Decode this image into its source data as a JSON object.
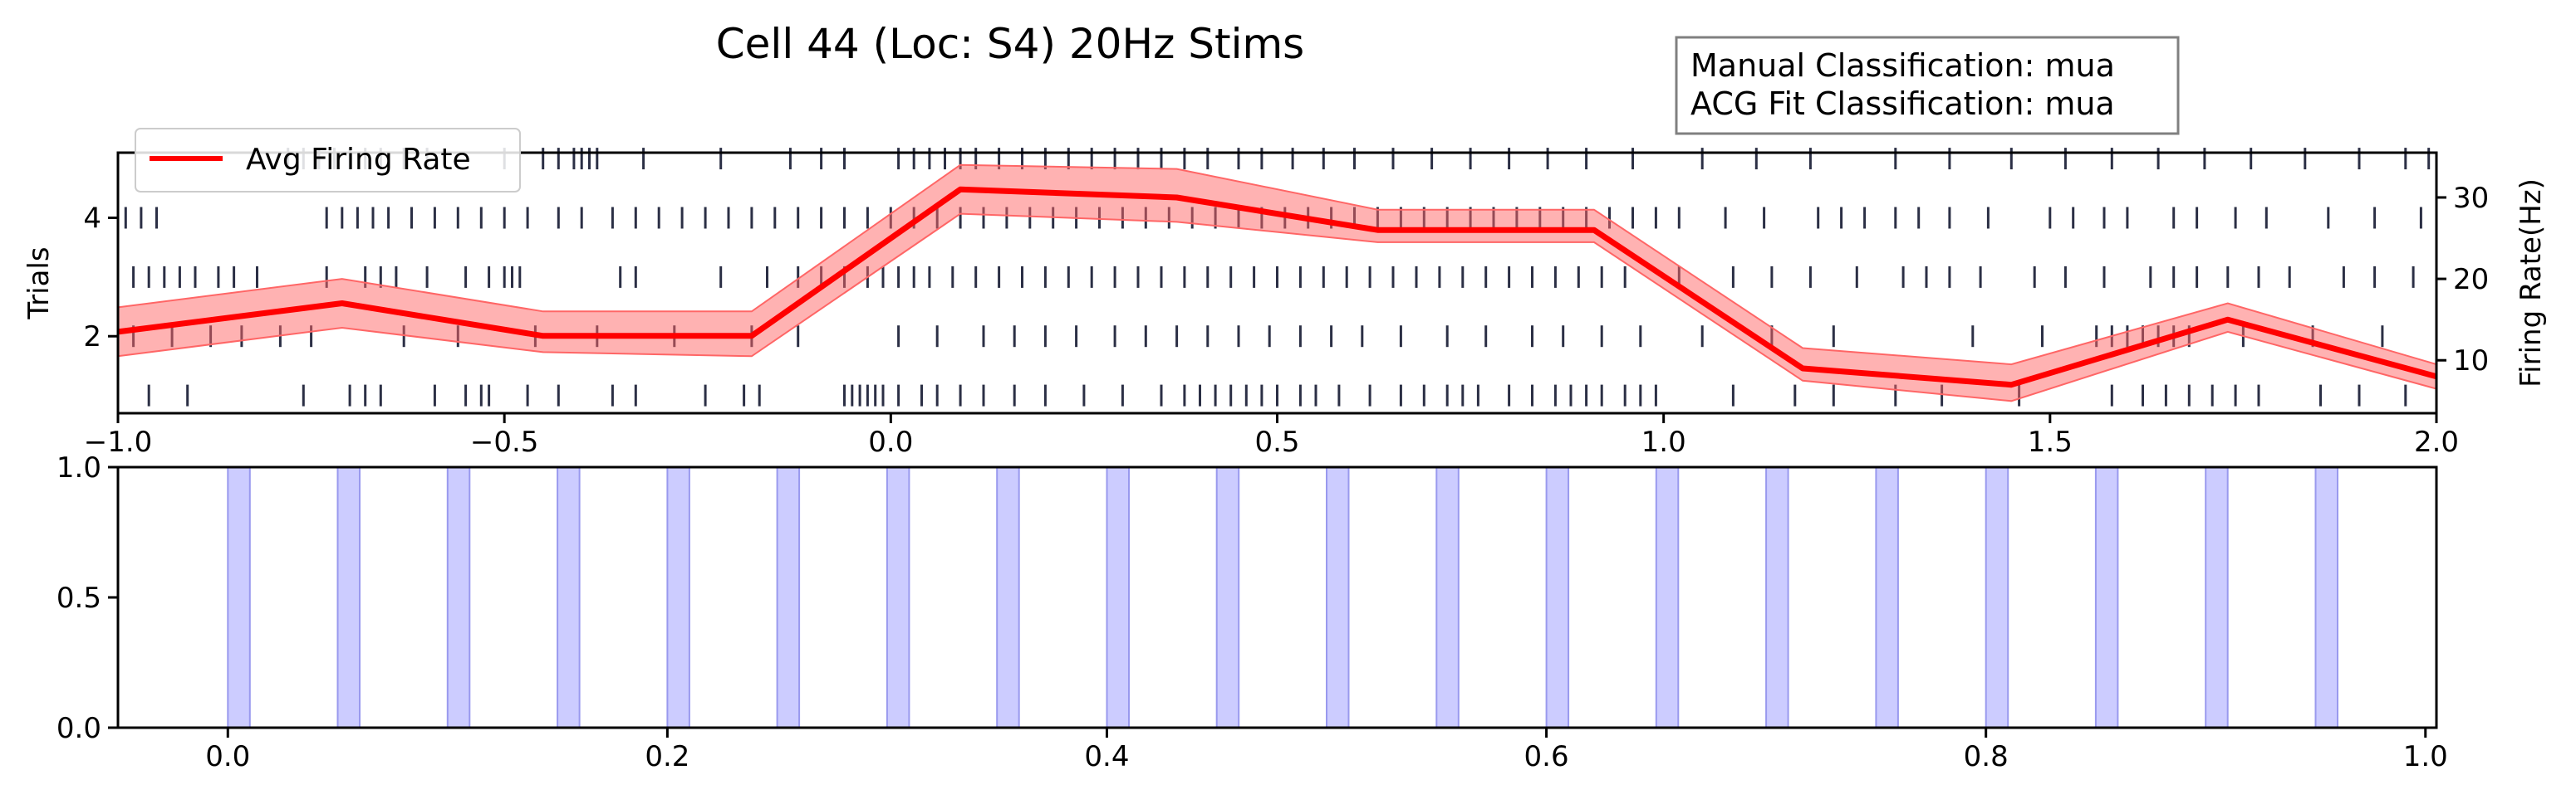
{
  "figure": {
    "title": "Cell 44 (Loc: S4) 20Hz Stims",
    "classification_box": {
      "line1": "Manual Classification: mua",
      "line2": "ACG Fit Classification: mua"
    }
  },
  "chart_data": [
    {
      "type": "line",
      "name": "raster-and-rate",
      "xlim": [
        -1.0,
        2.0
      ],
      "x_ticks": [
        -1.0,
        -0.5,
        0.0,
        0.5,
        1.0,
        1.5,
        2.0
      ],
      "x_tick_labels": [
        "−1.0",
        "−0.5",
        "0.0",
        "0.5",
        "1.0",
        "1.5",
        "2.0"
      ],
      "left_axis": {
        "label": "Trials",
        "ylim": [
          0.7,
          5.1
        ],
        "ticks": [
          2,
          4
        ],
        "tick_labels": [
          "2",
          "4"
        ]
      },
      "right_axis": {
        "label": "Firing Rate(Hz)",
        "ylim": [
          3.5,
          35.5
        ],
        "ticks": [
          10,
          20,
          30
        ],
        "tick_labels": [
          "10",
          "20",
          "30"
        ]
      },
      "legend": {
        "position": "upper-left",
        "entries": [
          "Avg Firing Rate"
        ]
      },
      "series": [
        {
          "name": "Avg Firing Rate",
          "color": "#ff0000",
          "band_color": "#ff6666",
          "x": [
            -1.0,
            -0.71,
            -0.45,
            -0.18,
            0.09,
            0.37,
            0.63,
            0.91,
            1.18,
            1.45,
            1.73,
            2.0
          ],
          "y": [
            13.5,
            17.0,
            13.0,
            13.0,
            31.0,
            30.0,
            26.0,
            26.0,
            9.0,
            7.0,
            15.0,
            8.0
          ],
          "lower": [
            10.5,
            14.0,
            11.0,
            10.5,
            28.0,
            27.0,
            24.5,
            24.5,
            7.5,
            5.0,
            13.5,
            6.5
          ],
          "upper": [
            16.5,
            20.0,
            16.0,
            16.0,
            34.0,
            33.5,
            28.5,
            28.5,
            11.5,
            9.5,
            17.0,
            9.5
          ]
        }
      ],
      "raster": {
        "color": "#2b2f45",
        "trials": [
          {
            "trial": 1,
            "spikes": [
              -0.96,
              -0.91,
              -0.76,
              -0.7,
              -0.68,
              -0.66,
              -0.59,
              -0.55,
              -0.53,
              -0.52,
              -0.47,
              -0.43,
              -0.36,
              -0.33,
              -0.24,
              -0.19,
              -0.17,
              -0.06,
              -0.05,
              -0.04,
              -0.03,
              -0.02,
              -0.01,
              0.01,
              0.04,
              0.06,
              0.09,
              0.12,
              0.16,
              0.2,
              0.25,
              0.3,
              0.35,
              0.38,
              0.4,
              0.42,
              0.44,
              0.46,
              0.48,
              0.5,
              0.53,
              0.55,
              0.58,
              0.62,
              0.66,
              0.69,
              0.72,
              0.74,
              0.76,
              0.8,
              0.83,
              0.86,
              0.88,
              0.9,
              0.92,
              0.95,
              0.97,
              0.99,
              1.09,
              1.17,
              1.22,
              1.3,
              1.36,
              1.46,
              1.58,
              1.62,
              1.65,
              1.68,
              1.71,
              1.74,
              1.77,
              1.85,
              1.9,
              1.96
            ]
          },
          {
            "trial": 2,
            "spikes": [
              -0.98,
              -0.93,
              -0.88,
              -0.84,
              -0.79,
              -0.75,
              -0.63,
              -0.56,
              -0.46,
              -0.38,
              -0.28,
              -0.18,
              -0.12,
              0.01,
              0.06,
              0.12,
              0.16,
              0.2,
              0.24,
              0.29,
              0.33,
              0.37,
              0.41,
              0.45,
              0.49,
              0.53,
              0.57,
              0.61,
              0.66,
              0.72,
              0.77,
              0.83,
              0.87,
              0.92,
              0.97,
              1.05,
              1.14,
              1.22,
              1.4,
              1.49,
              1.56,
              1.58,
              1.6,
              1.62,
              1.64,
              1.66,
              1.68,
              1.75,
              1.84,
              1.93
            ]
          },
          {
            "trial": 3,
            "spikes": [
              -0.98,
              -0.96,
              -0.94,
              -0.92,
              -0.9,
              -0.87,
              -0.85,
              -0.82,
              -0.73,
              -0.68,
              -0.66,
              -0.64,
              -0.6,
              -0.55,
              -0.52,
              -0.5,
              -0.49,
              -0.48,
              -0.35,
              -0.33,
              -0.22,
              -0.16,
              -0.12,
              -0.09,
              -0.06,
              -0.03,
              -0.01,
              0.01,
              0.03,
              0.05,
              0.08,
              0.11,
              0.14,
              0.17,
              0.2,
              0.23,
              0.26,
              0.29,
              0.32,
              0.35,
              0.38,
              0.41,
              0.44,
              0.47,
              0.5,
              0.53,
              0.56,
              0.59,
              0.62,
              0.65,
              0.68,
              0.71,
              0.74,
              0.77,
              0.8,
              0.83,
              0.86,
              0.89,
              0.92,
              0.95,
              1.02,
              1.09,
              1.14,
              1.19,
              1.25,
              1.31,
              1.34,
              1.37,
              1.41,
              1.48,
              1.52,
              1.57,
              1.63,
              1.66,
              1.69,
              1.73,
              1.77,
              1.81,
              1.88,
              1.92,
              1.97
            ]
          },
          {
            "trial": 4,
            "spikes": [
              -0.99,
              -0.97,
              -0.95,
              -0.73,
              -0.71,
              -0.69,
              -0.67,
              -0.65,
              -0.62,
              -0.59,
              -0.56,
              -0.53,
              -0.5,
              -0.47,
              -0.43,
              -0.4,
              -0.36,
              -0.33,
              -0.3,
              -0.27,
              -0.24,
              -0.21,
              -0.18,
              -0.15,
              -0.12,
              -0.09,
              -0.06,
              -0.03,
              0.0,
              0.03,
              0.06,
              0.09,
              0.12,
              0.15,
              0.18,
              0.21,
              0.24,
              0.27,
              0.3,
              0.33,
              0.36,
              0.39,
              0.42,
              0.45,
              0.48,
              0.51,
              0.54,
              0.57,
              0.6,
              0.63,
              0.66,
              0.69,
              0.72,
              0.75,
              0.78,
              0.81,
              0.84,
              0.87,
              0.9,
              0.93,
              0.96,
              0.99,
              1.02,
              1.08,
              1.13,
              1.2,
              1.23,
              1.26,
              1.3,
              1.33,
              1.37,
              1.42,
              1.5,
              1.53,
              1.57,
              1.6,
              1.66,
              1.69,
              1.74,
              1.78,
              1.86,
              1.92,
              1.98
            ]
          },
          {
            "trial": 5,
            "spikes": [
              -0.78,
              -0.76,
              -0.74,
              -0.72,
              -0.7,
              -0.68,
              -0.66,
              -0.63,
              -0.6,
              -0.5,
              -0.45,
              -0.43,
              -0.41,
              -0.4,
              -0.39,
              -0.38,
              -0.32,
              -0.22,
              -0.13,
              -0.09,
              -0.06,
              0.01,
              0.03,
              0.05,
              0.07,
              0.09,
              0.11,
              0.14,
              0.17,
              0.2,
              0.23,
              0.26,
              0.29,
              0.32,
              0.35,
              0.38,
              0.41,
              0.45,
              0.48,
              0.52,
              0.56,
              0.6,
              0.65,
              0.7,
              0.75,
              0.8,
              0.85,
              0.9,
              0.96,
              1.05,
              1.12,
              1.19,
              1.3,
              1.37,
              1.45,
              1.52,
              1.58,
              1.64,
              1.7,
              1.76,
              1.83,
              1.9,
              1.96,
              1.99
            ]
          }
        ]
      }
    },
    {
      "type": "bar",
      "name": "stim-pulses",
      "xlim": [
        -0.05,
        1.005
      ],
      "ylim": [
        0.0,
        1.0
      ],
      "x_ticks": [
        0.0,
        0.2,
        0.4,
        0.6,
        0.8,
        1.0
      ],
      "x_tick_labels": [
        "0.0",
        "0.2",
        "0.4",
        "0.6",
        "0.8",
        "1.0"
      ],
      "y_ticks": [
        0.0,
        0.5,
        1.0
      ],
      "y_tick_labels": [
        "0.0",
        "0.5",
        "1.0"
      ],
      "pulse_color": "#ccccff",
      "pulse_edge_color": "#9999ee",
      "pulse_width": 0.01,
      "pulse_starts": [
        0.0,
        0.05,
        0.1,
        0.15,
        0.2,
        0.25,
        0.3,
        0.35,
        0.4,
        0.45,
        0.5,
        0.55,
        0.6,
        0.65,
        0.7,
        0.75,
        0.8,
        0.85,
        0.9,
        0.95
      ]
    }
  ]
}
